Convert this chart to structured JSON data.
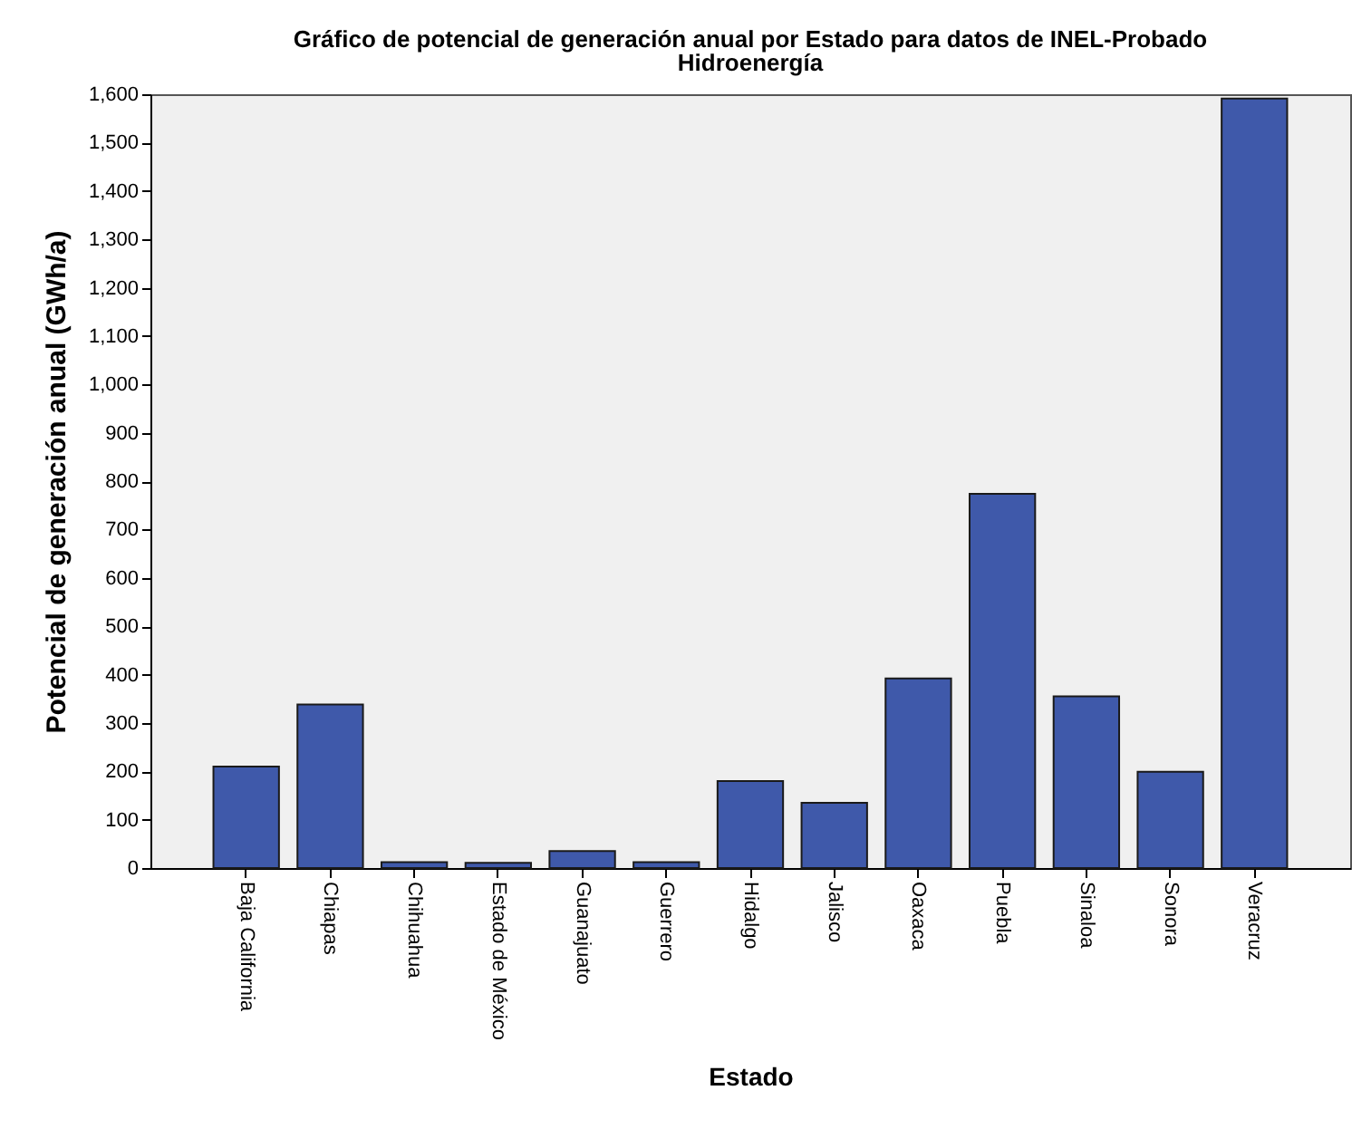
{
  "chart_data": {
    "type": "bar",
    "title": [
      "Gráfico de potencial de generación anual por Estado para datos de INEL-Probado",
      "Hidroenergía"
    ],
    "xlabel": "Estado",
    "ylabel": "Potencial de generación anual (GWh/a)",
    "categories": [
      "Baja California",
      "Chiapas",
      "Chihuahua",
      "Estado de México",
      "Guanajuato",
      "Guerrero",
      "Hidalgo",
      "Jalisco",
      "Oaxaca",
      "Puebla",
      "Sinaloa",
      "Sonora",
      "Veracruz"
    ],
    "values": [
      210,
      338,
      12,
      11,
      35,
      12,
      180,
      135,
      392,
      774,
      355,
      199,
      1591
    ],
    "color": "#3f59aa",
    "ylim": [
      0,
      1600
    ],
    "yticks": [
      0,
      100,
      200,
      300,
      400,
      500,
      600,
      700,
      800,
      900,
      {
        "value": 1000,
        "label": "1,000"
      },
      {
        "value": 1100,
        "label": "1,100"
      },
      {
        "value": 1200,
        "label": "1,200"
      },
      {
        "value": 1300,
        "label": "1,300"
      },
      {
        "value": 1400,
        "label": "1,400"
      },
      {
        "value": 1500,
        "label": "1,500"
      },
      {
        "value": 1600,
        "label": "1,600"
      }
    ],
    "grid": false,
    "legend": false
  }
}
